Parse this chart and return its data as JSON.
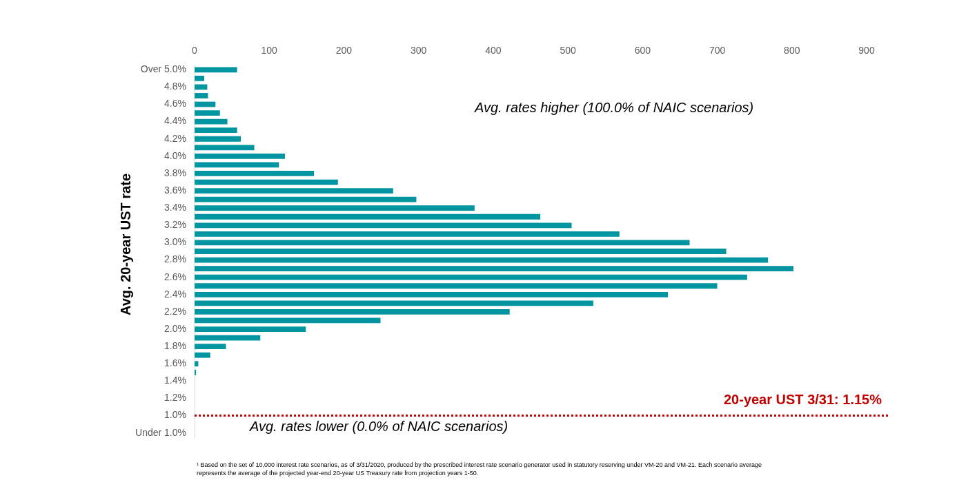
{
  "chart_data": {
    "type": "bar",
    "orientation": "horizontal",
    "ylabel": "Avg. 20-year UST rate",
    "categories": [
      "Over 5.0%",
      null,
      "4.8%",
      null,
      "4.6%",
      null,
      "4.4%",
      null,
      "4.2%",
      null,
      "4.0%",
      null,
      "3.8%",
      null,
      "3.6%",
      null,
      "3.4%",
      null,
      "3.2%",
      null,
      "3.0%",
      null,
      "2.8%",
      null,
      "2.6%",
      null,
      "2.4%",
      null,
      "2.2%",
      null,
      "2.0%",
      null,
      "1.8%",
      null,
      "1.6%",
      null,
      "1.4%",
      null,
      "1.2%",
      null,
      "1.0%",
      null,
      "Under 1.0%"
    ],
    "values": [
      57,
      13,
      17,
      18,
      28,
      34,
      44,
      57,
      62,
      80,
      121,
      113,
      160,
      192,
      266,
      297,
      375,
      463,
      505,
      569,
      663,
      712,
      768,
      802,
      740,
      700,
      634,
      534,
      422,
      249,
      149,
      88,
      42,
      21,
      5,
      2,
      0,
      0,
      0,
      0,
      0,
      0,
      0
    ],
    "color": "#0095a0",
    "xlim": [
      0,
      900
    ],
    "xticks": [
      0,
      100,
      200,
      300,
      400,
      500,
      600,
      700,
      800,
      900
    ],
    "grid": false,
    "legend": false,
    "ref_lines": [
      {
        "axis": "y",
        "value": "1.0%",
        "label": "20-year UST 3/31: 1.15%",
        "color": "#c00000",
        "line_style": "dotted"
      }
    ],
    "annotations": [
      "Avg. rates higher (100.0% of NAIC scenarios)",
      "Avg. rates lower (0.0% of NAIC scenarios)",
      "¹ Based on the set of 10,000 interest rate scenarios, as of 3/31/2020, produced by the prescribed interest rate scenario generator used in statutory reserving under VM-20 and VM-21. Each scenario average represents the average of the projected year-end 20-year US Treasury rate from projection years 1-50."
    ]
  }
}
